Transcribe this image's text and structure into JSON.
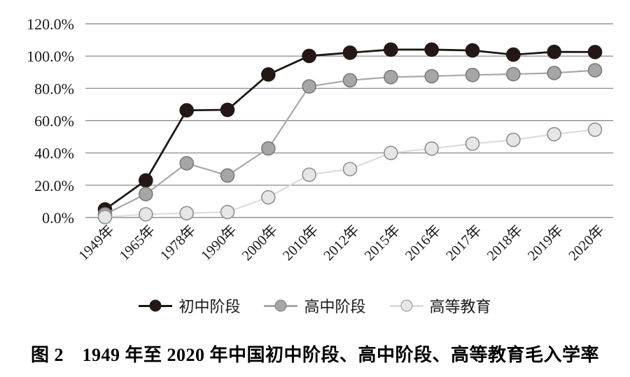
{
  "figure": {
    "caption": "图 2　1949 年至 2020 年中国初中阶段、高中阶段、高等教育毛入学率"
  },
  "colors": {
    "background": "#ffffff",
    "gridline": "#7f7f7f",
    "axis_text": "#1a1a1a",
    "caption_text": "#000000"
  },
  "chart_data": {
    "type": "line",
    "title": "",
    "xlabel": "",
    "ylabel": "",
    "categories": [
      "1949年",
      "1965年",
      "1978年",
      "1990年",
      "2000年",
      "2010年",
      "2012年",
      "2015年",
      "2016年",
      "2017年",
      "2018年",
      "2019年",
      "2020年"
    ],
    "series": [
      {
        "key": "junior-high",
        "name": "初中阶段",
        "line_color": "#1d1714",
        "marker_fill": "#231815",
        "marker_stroke": "#231815",
        "values": [
          5.0,
          23.0,
          66.4,
          66.7,
          88.6,
          100.1,
          102.1,
          104.0,
          104.0,
          103.5,
          100.9,
          102.6,
          102.5
        ]
      },
      {
        "key": "senior-high",
        "name": "高中阶段",
        "line_color": "#a8a8a8",
        "marker_fill": "#a6a6a6",
        "marker_stroke": "#7a7a7a",
        "values": [
          2.0,
          14.5,
          33.6,
          26.0,
          42.8,
          81.2,
          85.0,
          87.0,
          87.5,
          88.3,
          88.8,
          89.5,
          91.2
        ]
      },
      {
        "key": "higher-education",
        "name": "高等教育",
        "line_color": "#dcdcdc",
        "marker_fill": "#e6e6e6",
        "marker_stroke": "#8f8f8f",
        "values": [
          0.3,
          2.0,
          2.7,
          3.4,
          12.5,
          26.5,
          30.0,
          40.0,
          42.7,
          45.7,
          48.1,
          51.6,
          54.4
        ]
      }
    ],
    "y_ticks": [
      "120.0%",
      "100.0%",
      "80.0%",
      "60.0%",
      "40.0%",
      "20.0%",
      "0.0%"
    ],
    "ylim": [
      0,
      120
    ],
    "grid": "horizontal-only",
    "legend_position": "bottom"
  }
}
